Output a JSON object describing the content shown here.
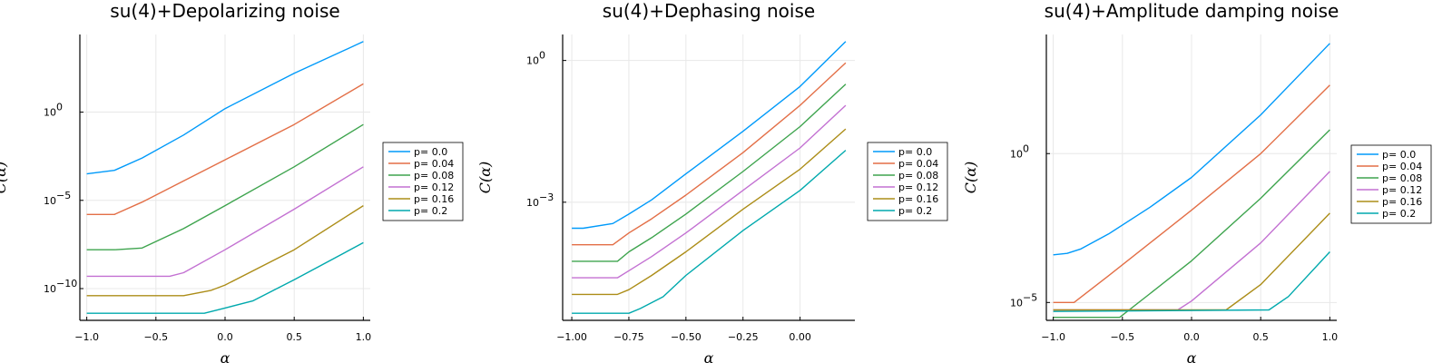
{
  "chart_data": [
    {
      "type": "line",
      "title": "su(4)+Depolarizing noise",
      "xlabel": "α",
      "ylabel": "C(α)",
      "yscale": "log",
      "xlim": [
        -1.05,
        1.05
      ],
      "ylim_log10": [
        -11.8,
        4.4
      ],
      "xticks": [
        -1.0,
        -0.5,
        0.0,
        0.5,
        1.0
      ],
      "xtick_labels": [
        "−1.0",
        "−0.5",
        "0.0",
        "0.5",
        "1.0"
      ],
      "yticks_exp": [
        0,
        -5,
        -10
      ],
      "grid": true,
      "legend_position": "outer-right",
      "series": [
        {
          "name": "p= 0.0",
          "color": "#009AFA",
          "x": [
            -1.0,
            -0.8,
            -0.6,
            -0.3,
            0.0,
            0.5,
            1.0
          ],
          "log10y": [
            -3.5,
            -3.3,
            -2.6,
            -1.3,
            0.2,
            2.2,
            4.0
          ]
        },
        {
          "name": "p= 0.04",
          "color": "#E36F47",
          "x": [
            -1.0,
            -0.8,
            -0.6,
            -0.3,
            0.0,
            0.5,
            1.0
          ],
          "log10y": [
            -5.8,
            -5.8,
            -5.1,
            -3.9,
            -2.7,
            -0.7,
            1.6
          ]
        },
        {
          "name": "p= 0.08",
          "color": "#3EA44E",
          "x": [
            -1.0,
            -0.8,
            -0.6,
            -0.3,
            0.0,
            0.5,
            1.0
          ],
          "log10y": [
            -7.8,
            -7.8,
            -7.7,
            -6.6,
            -5.3,
            -3.1,
            -0.7
          ]
        },
        {
          "name": "p= 0.12",
          "color": "#C371D2",
          "x": [
            -1.0,
            -0.8,
            -0.6,
            -0.4,
            -0.3,
            0.0,
            0.5,
            1.0
          ],
          "log10y": [
            -9.3,
            -9.3,
            -9.3,
            -9.3,
            -9.1,
            -7.8,
            -5.5,
            -3.1
          ]
        },
        {
          "name": "p= 0.16",
          "color": "#AC8D18",
          "x": [
            -1.0,
            -0.8,
            -0.4,
            -0.3,
            -0.1,
            0.0,
            0.5,
            1.0
          ],
          "log10y": [
            -10.4,
            -10.4,
            -10.4,
            -10.4,
            -10.1,
            -9.8,
            -7.8,
            -5.3
          ]
        },
        {
          "name": "p= 0.2",
          "color": "#00A9AD",
          "x": [
            -1.0,
            -0.8,
            -0.4,
            -0.15,
            0.0,
            0.2,
            0.5,
            1.0
          ],
          "log10y": [
            -11.4,
            -11.4,
            -11.4,
            -11.4,
            -11.1,
            -10.7,
            -9.5,
            -7.4
          ]
        }
      ]
    },
    {
      "type": "line",
      "title": "su(4)+Dephasing noise",
      "xlabel": "α",
      "ylabel": "C(α)",
      "yscale": "log",
      "xlim": [
        -1.04,
        0.24
      ],
      "ylim_log10": [
        -5.5,
        0.55
      ],
      "xticks": [
        -1.0,
        -0.75,
        -0.5,
        -0.25,
        0.0
      ],
      "xtick_labels": [
        "−1.00",
        "−0.75",
        "−0.50",
        "−0.25",
        "0.00"
      ],
      "yticks_exp": [
        0,
        -3
      ],
      "grid": true,
      "legend_position": "outer-right",
      "series": [
        {
          "name": "p= 0.0",
          "color": "#009AFA",
          "x": [
            -1.0,
            -0.95,
            -0.82,
            -0.75,
            -0.65,
            -0.5,
            -0.25,
            0.0,
            0.2
          ],
          "log10y": [
            -3.55,
            -3.55,
            -3.45,
            -3.25,
            -2.95,
            -2.4,
            -1.5,
            -0.55,
            0.4
          ]
        },
        {
          "name": "p= 0.04",
          "color": "#E36F47",
          "x": [
            -1.0,
            -0.82,
            -0.75,
            -0.65,
            -0.5,
            -0.25,
            0.0,
            0.2
          ],
          "log10y": [
            -3.9,
            -3.9,
            -3.65,
            -3.35,
            -2.85,
            -1.95,
            -0.95,
            -0.05
          ]
        },
        {
          "name": "p= 0.08",
          "color": "#3EA44E",
          "x": [
            -1.0,
            -0.8,
            -0.75,
            -0.65,
            -0.5,
            -0.25,
            0.0,
            0.2
          ],
          "log10y": [
            -4.25,
            -4.25,
            -4.05,
            -3.75,
            -3.25,
            -2.35,
            -1.4,
            -0.5
          ]
        },
        {
          "name": "p= 0.12",
          "color": "#C371D2",
          "x": [
            -1.0,
            -0.8,
            -0.75,
            -0.65,
            -0.5,
            -0.25,
            0.0,
            0.2
          ],
          "log10y": [
            -4.6,
            -4.6,
            -4.45,
            -4.15,
            -3.65,
            -2.75,
            -1.85,
            -0.95
          ]
        },
        {
          "name": "p= 0.16",
          "color": "#AC8D18",
          "x": [
            -1.0,
            -0.8,
            -0.75,
            -0.65,
            -0.5,
            -0.25,
            0.0,
            0.2
          ],
          "log10y": [
            -4.95,
            -4.95,
            -4.85,
            -4.55,
            -4.05,
            -3.15,
            -2.3,
            -1.45
          ]
        },
        {
          "name": "p= 0.2",
          "color": "#00A9AD",
          "x": [
            -1.0,
            -0.75,
            -0.7,
            -0.6,
            -0.5,
            -0.25,
            0.0,
            0.2
          ],
          "log10y": [
            -5.35,
            -5.35,
            -5.25,
            -5.0,
            -4.55,
            -3.6,
            -2.75,
            -1.9
          ]
        }
      ]
    },
    {
      "type": "line",
      "title": "su(4)+Amplitude damping noise",
      "xlabel": "α",
      "ylabel": "C(α)",
      "yscale": "log",
      "xlim": [
        -1.05,
        1.05
      ],
      "ylim_log10": [
        -5.6,
        4.0
      ],
      "xticks": [
        -1.0,
        -0.5,
        0.0,
        0.5,
        1.0
      ],
      "xtick_labels": [
        "−1.0",
        "−0.5",
        "0.0",
        "0.5",
        "1.0"
      ],
      "yticks_exp": [
        0,
        -5
      ],
      "grid": true,
      "legend_position": "outer-right",
      "series": [
        {
          "name": "p= 0.0",
          "color": "#009AFA",
          "x": [
            -1.0,
            -0.9,
            -0.8,
            -0.6,
            -0.3,
            0.0,
            0.5,
            1.0
          ],
          "log10y": [
            -3.4,
            -3.35,
            -3.2,
            -2.7,
            -1.8,
            -0.8,
            1.3,
            3.7
          ]
        },
        {
          "name": "p= 0.04",
          "color": "#E36F47",
          "x": [
            -1.0,
            -0.85,
            -0.6,
            -0.3,
            0.0,
            0.5,
            1.0
          ],
          "log10y": [
            -5.0,
            -5.0,
            -4.1,
            -3.0,
            -1.9,
            0.0,
            2.3
          ]
        },
        {
          "name": "p= 0.08",
          "color": "#3EA44E",
          "x": [
            -1.0,
            -0.52,
            -0.3,
            0.0,
            0.5,
            1.0
          ],
          "log10y": [
            -5.5,
            -5.5,
            -4.7,
            -3.6,
            -1.5,
            0.8
          ]
        },
        {
          "name": "p= 0.12",
          "color": "#C371D2",
          "x": [
            -1.0,
            -0.1,
            0.0,
            0.5,
            1.0
          ],
          "log10y": [
            -5.25,
            -5.25,
            -4.95,
            -3.0,
            -0.6
          ]
        },
        {
          "name": "p= 0.16",
          "color": "#AC8D18",
          "x": [
            -1.0,
            0.25,
            0.5,
            1.0
          ],
          "log10y": [
            -5.25,
            -5.25,
            -4.4,
            -2.0
          ]
        },
        {
          "name": "p= 0.2",
          "color": "#00A9AD",
          "x": [
            -1.0,
            0.56,
            0.7,
            1.0
          ],
          "log10y": [
            -5.3,
            -5.25,
            -4.8,
            -3.3
          ]
        }
      ]
    }
  ]
}
